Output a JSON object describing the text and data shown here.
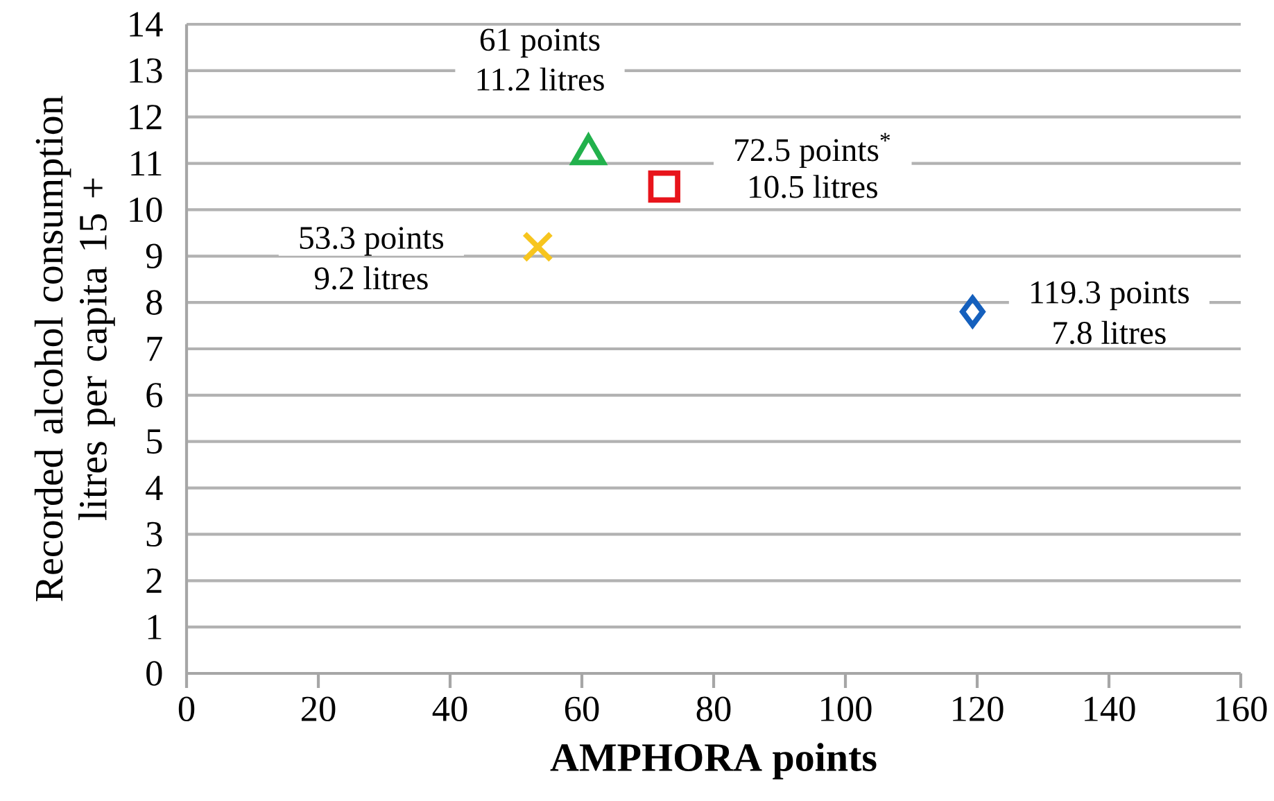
{
  "chart_data": {
    "type": "scatter",
    "xlabel": "AMPHORA points",
    "ylabel": "Recorded alcohol consumption litres per capita 15 +",
    "xlim": [
      0,
      160
    ],
    "xticks": [
      0,
      20,
      40,
      60,
      80,
      100,
      120,
      140,
      160
    ],
    "ylim": [
      0,
      14
    ],
    "yticks": [
      0,
      1,
      2,
      3,
      4,
      5,
      6,
      7,
      8,
      9,
      10,
      11,
      12,
      13,
      14
    ],
    "grid": "y",
    "series": [
      {
        "x": [
          61
        ],
        "values": [
          11.2
        ],
        "color": "#22b14c",
        "marker": "triangle"
      },
      {
        "x": [
          72.5
        ],
        "values": [
          10.5
        ],
        "color": "#e8141b",
        "marker": "square"
      },
      {
        "x": [
          53.3
        ],
        "values": [
          9.2
        ],
        "color": "#f7c51e",
        "marker": "cross"
      },
      {
        "x": [
          119.3
        ],
        "values": [
          7.8
        ],
        "color": "#1560bd",
        "marker": "diamond"
      }
    ],
    "annotations": [
      "61 points",
      "11.2 litres",
      "72.5 points$^{*}$",
      "10.5 litres",
      "53.3 points",
      "9.2 litres",
      "119.3 points",
      "7.8 litres"
    ]
  }
}
